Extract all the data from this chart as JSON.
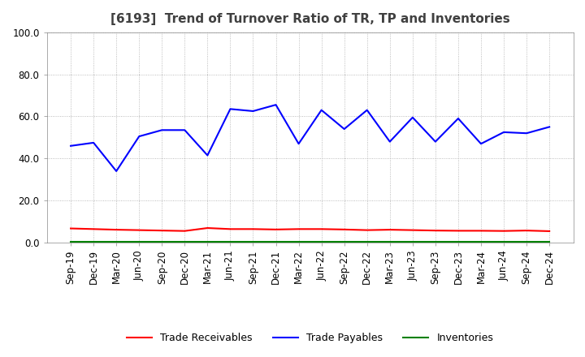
{
  "title": "[6193]  Trend of Turnover Ratio of TR, TP and Inventories",
  "ylim": [
    0,
    100
  ],
  "yticks": [
    0,
    20,
    40,
    60,
    80,
    100
  ],
  "ytick_labels": [
    "0.0",
    "20.0",
    "40.0",
    "60.0",
    "80.0",
    "100.0"
  ],
  "x_labels": [
    "Sep-19",
    "Dec-19",
    "Mar-20",
    "Jun-20",
    "Sep-20",
    "Dec-20",
    "Mar-21",
    "Jun-21",
    "Sep-21",
    "Dec-21",
    "Mar-22",
    "Jun-22",
    "Sep-22",
    "Dec-22",
    "Mar-23",
    "Jun-23",
    "Sep-23",
    "Dec-23",
    "Mar-24",
    "Jun-24",
    "Sep-24",
    "Dec-24"
  ],
  "trade_receivables": [
    6.8,
    6.5,
    6.2,
    6.0,
    5.8,
    5.6,
    7.0,
    6.5,
    6.5,
    6.3,
    6.5,
    6.5,
    6.3,
    6.0,
    6.2,
    6.0,
    5.8,
    5.7,
    5.7,
    5.6,
    5.8,
    5.5
  ],
  "trade_payables": [
    46.0,
    47.5,
    34.0,
    50.5,
    53.5,
    53.5,
    41.5,
    63.5,
    62.5,
    65.5,
    47.0,
    63.0,
    54.0,
    63.0,
    48.0,
    59.5,
    48.0,
    59.0,
    47.0,
    52.5,
    52.0,
    55.0
  ],
  "inventories": [
    0.3,
    0.3,
    0.3,
    0.3,
    0.3,
    0.3,
    0.3,
    0.3,
    0.3,
    0.3,
    0.3,
    0.3,
    0.3,
    0.3,
    0.3,
    0.3,
    0.3,
    0.3,
    0.3,
    0.3,
    0.3,
    0.3
  ],
  "line_colors": {
    "trade_receivables": "#ff0000",
    "trade_payables": "#0000ff",
    "inventories": "#008000"
  },
  "line_width": 1.5,
  "legend_labels": [
    "Trade Receivables",
    "Trade Payables",
    "Inventories"
  ],
  "background_color": "#ffffff",
  "grid_color": "#aaaaaa",
  "title_color": "#404040",
  "title_fontsize": 11,
  "tick_fontsize": 8.5
}
